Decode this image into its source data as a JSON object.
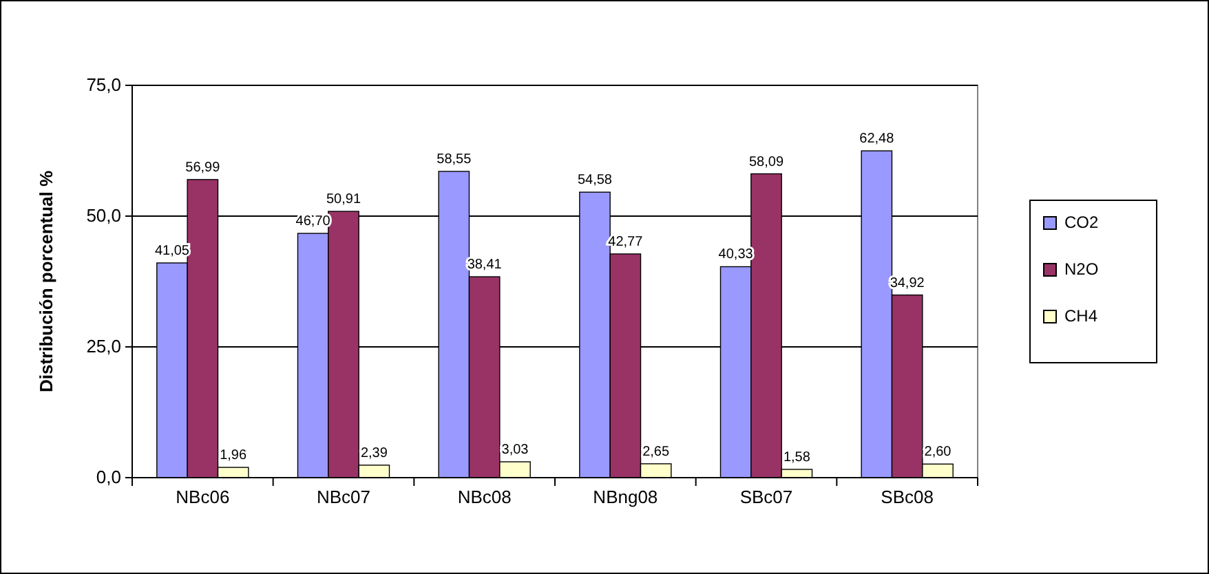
{
  "chart_data": {
    "type": "bar",
    "ylabel": "Distribución porcentual %",
    "categories": [
      "NBc06",
      "NBc07",
      "NBc08",
      "NBng08",
      "SBc07",
      "SBc08"
    ],
    "series": [
      {
        "name": "CO2",
        "color": "#9999ff",
        "values": [
          41.05,
          46.7,
          58.55,
          54.58,
          40.33,
          62.48
        ],
        "value_labels": [
          "41,05",
          "46,70",
          "58,55",
          "54,58",
          "40,33",
          "62,48"
        ]
      },
      {
        "name": "N2O",
        "color": "#993366",
        "values": [
          56.99,
          50.91,
          38.41,
          42.77,
          58.09,
          34.92
        ],
        "value_labels": [
          "56,99",
          "50,91",
          "38,41",
          "42,77",
          "58,09",
          "34,92"
        ]
      },
      {
        "name": "CH4",
        "color": "#ffffcc",
        "values": [
          1.96,
          2.39,
          3.03,
          2.65,
          1.58,
          2.6
        ],
        "value_labels": [
          "1,96",
          "2,39",
          "3,03",
          "2,65",
          "1,58",
          "2,60"
        ]
      }
    ],
    "ylim": [
      0,
      75
    ],
    "yticks": [
      {
        "value": 0,
        "label": "0,0"
      },
      {
        "value": 25,
        "label": "25,0"
      },
      {
        "value": 50,
        "label": "50,0"
      },
      {
        "value": 75,
        "label": "75,0"
      }
    ],
    "grid": "y",
    "legend": "right"
  }
}
